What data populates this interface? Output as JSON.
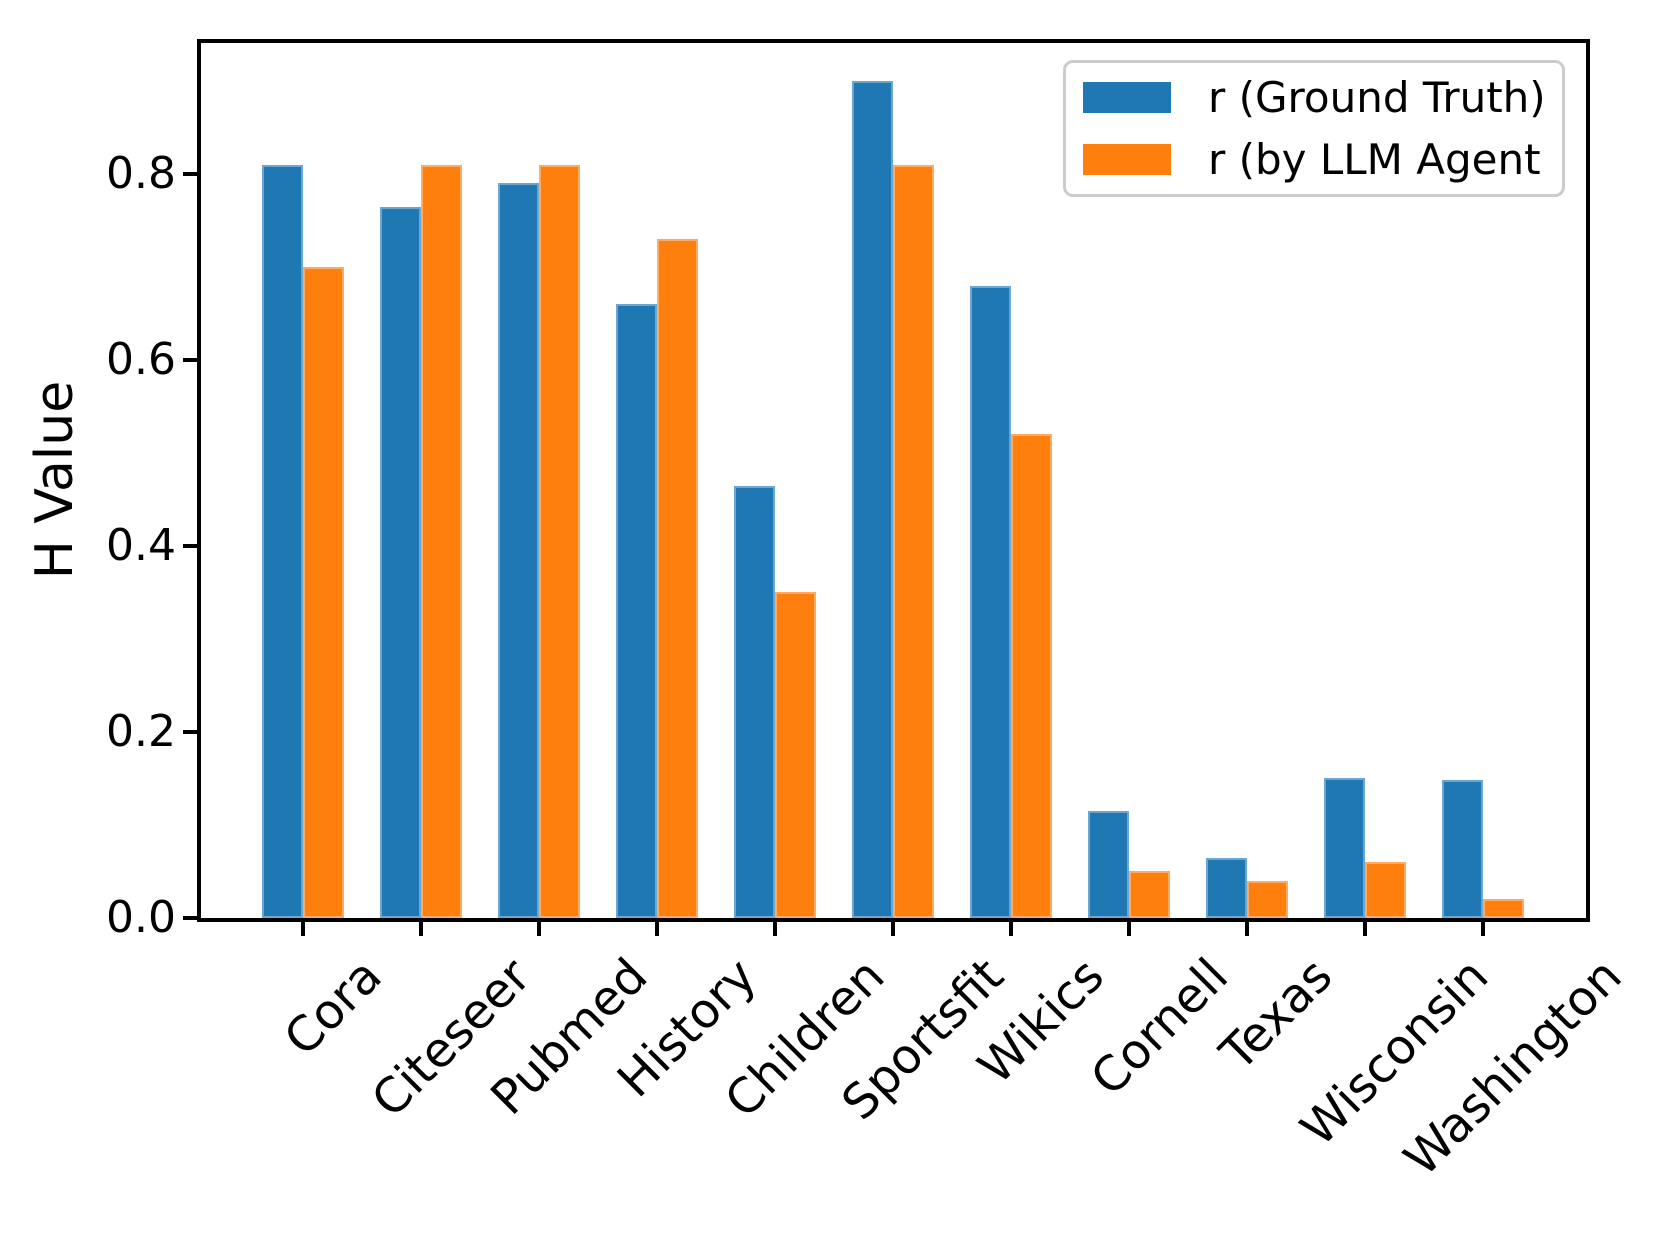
{
  "chart_data": {
    "type": "bar",
    "title": "",
    "xlabel": "",
    "ylabel": "H Value",
    "categories": [
      "Cora",
      "Citeseer",
      "Pubmed",
      "History",
      "Children",
      "Sportsfit",
      "Wikics",
      "Cornell",
      "Texas",
      "Wisconsin",
      "Washington"
    ],
    "series": [
      {
        "name": "r (Ground Truth)",
        "color": "#1f77b4",
        "values": [
          0.81,
          0.765,
          0.79,
          0.66,
          0.465,
          0.9,
          0.68,
          0.115,
          0.065,
          0.15,
          0.148
        ]
      },
      {
        "name": "r (by LLM Agent",
        "color": "#ff7f0e",
        "values": [
          0.7,
          0.81,
          0.81,
          0.73,
          0.35,
          0.81,
          0.52,
          0.05,
          0.04,
          0.06,
          0.02
        ]
      }
    ],
    "ylim": [
      0,
      0.943
    ],
    "yticks": [
      0.0,
      0.2,
      0.4,
      0.6,
      0.8
    ],
    "ytick_labels": [
      "0.0",
      "0.2",
      "0.4",
      "0.6",
      "0.8"
    ],
    "x_tick_rotation": 45,
    "grid": false,
    "legend_position": "upper right"
  }
}
